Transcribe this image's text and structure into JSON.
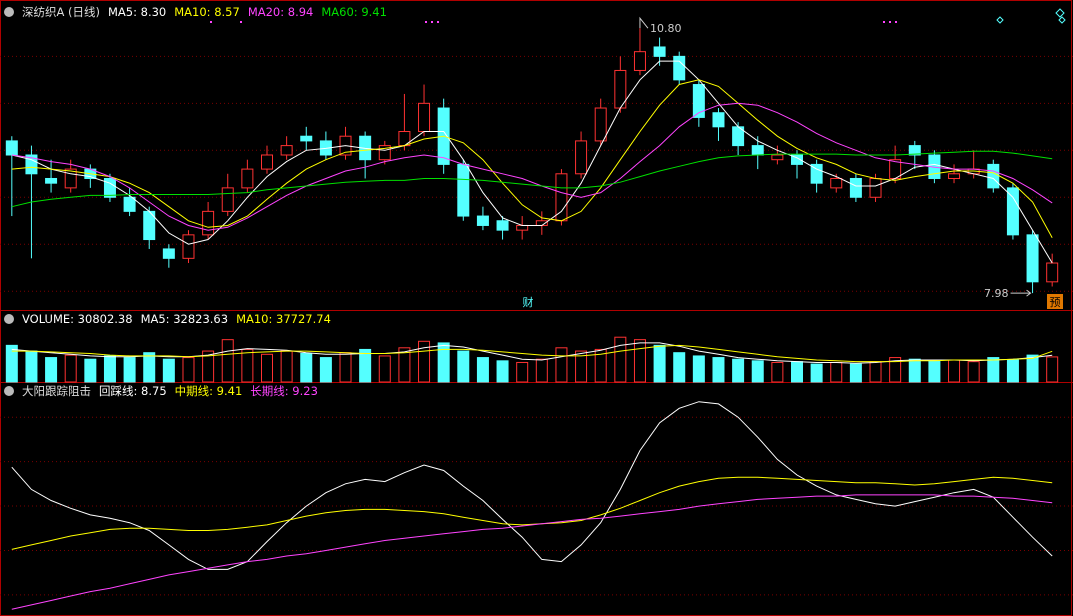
{
  "chart_data": [
    {
      "type": "candlestick",
      "title": "深纺织A (日线)",
      "legend": [
        {
          "text": "MA5: 8.30",
          "color": "#ffffff"
        },
        {
          "text": "MA10: 8.57",
          "color": "#ffff00"
        },
        {
          "text": "MA20: 8.94",
          "color": "#ff44ff"
        },
        {
          "text": "MA60: 9.41",
          "color": "#00e000"
        }
      ],
      "open": [
        9.6,
        9.45,
        9.2,
        9.1,
        9.3,
        9.2,
        9.0,
        8.85,
        8.45,
        8.35,
        8.6,
        8.85,
        9.1,
        9.3,
        9.45,
        9.65,
        9.6,
        9.45,
        9.65,
        9.4,
        9.55,
        9.7,
        9.95,
        9.35,
        8.8,
        8.75,
        8.65,
        8.7,
        8.75,
        9.25,
        9.6,
        9.95,
        10.35,
        10.6,
        10.5,
        10.2,
        9.9,
        9.75,
        9.55,
        9.4,
        9.45,
        9.35,
        9.1,
        9.2,
        9.0,
        9.2,
        9.55,
        9.45,
        9.2,
        9.25,
        9.35,
        9.1,
        8.6,
        8.1
      ],
      "high": [
        9.65,
        9.55,
        9.4,
        9.4,
        9.35,
        9.25,
        9.1,
        8.9,
        8.5,
        8.65,
        8.95,
        9.25,
        9.4,
        9.55,
        9.65,
        9.75,
        9.7,
        9.75,
        9.7,
        9.6,
        10.1,
        10.2,
        10.05,
        9.4,
        8.9,
        8.8,
        8.8,
        8.85,
        9.3,
        9.7,
        10.05,
        10.5,
        10.8,
        10.7,
        10.55,
        10.25,
        9.95,
        9.8,
        9.65,
        9.55,
        9.5,
        9.4,
        9.25,
        9.25,
        9.25,
        9.55,
        9.6,
        9.5,
        9.35,
        9.5,
        9.4,
        9.15,
        8.65,
        8.4
      ],
      "low": [
        8.8,
        8.35,
        9.05,
        9.05,
        9.1,
        8.95,
        8.8,
        8.45,
        8.25,
        8.3,
        8.55,
        8.8,
        9.05,
        9.25,
        9.4,
        9.5,
        9.4,
        9.4,
        9.2,
        9.35,
        9.5,
        9.65,
        9.25,
        8.75,
        8.65,
        8.55,
        8.55,
        8.6,
        8.7,
        9.2,
        9.55,
        9.9,
        10.3,
        10.4,
        10.2,
        9.75,
        9.6,
        9.45,
        9.3,
        9.35,
        9.2,
        9.05,
        9.05,
        8.95,
        8.95,
        9.15,
        9.3,
        9.15,
        9.15,
        9.2,
        9.05,
        8.55,
        7.98,
        8.05
      ],
      "close": [
        9.45,
        9.25,
        9.15,
        9.3,
        9.2,
        9.0,
        8.85,
        8.55,
        8.35,
        8.6,
        8.85,
        9.1,
        9.3,
        9.45,
        9.55,
        9.6,
        9.45,
        9.65,
        9.4,
        9.55,
        9.7,
        10.0,
        9.35,
        8.8,
        8.7,
        8.65,
        8.7,
        8.75,
        9.25,
        9.6,
        9.95,
        10.35,
        10.55,
        10.5,
        10.25,
        9.85,
        9.75,
        9.55,
        9.45,
        9.45,
        9.35,
        9.15,
        9.2,
        9.0,
        9.2,
        9.4,
        9.45,
        9.2,
        9.25,
        9.3,
        9.1,
        8.6,
        8.1,
        8.3
      ],
      "up_color": "#ff3232",
      "down_color": "#54ffff",
      "series": [
        {
          "color": "#ffffff",
          "values": [
            9.45,
            9.4,
            9.3,
            9.25,
            9.22,
            9.15,
            9.02,
            8.85,
            8.62,
            8.5,
            8.55,
            8.75,
            9.0,
            9.22,
            9.38,
            9.5,
            9.52,
            9.55,
            9.52,
            9.5,
            9.55,
            9.7,
            9.7,
            9.4,
            9.05,
            8.78,
            8.7,
            8.7,
            8.85,
            9.15,
            9.55,
            9.95,
            10.25,
            10.45,
            10.45,
            10.25,
            10.0,
            9.75,
            9.6,
            9.5,
            9.42,
            9.3,
            9.22,
            9.12,
            9.12,
            9.2,
            9.32,
            9.35,
            9.3,
            9.25,
            9.2,
            9.0,
            8.65,
            8.3
          ]
        },
        {
          "color": "#ffff00",
          "values": [
            9.3,
            9.32,
            9.3,
            9.28,
            9.25,
            9.22,
            9.15,
            9.05,
            8.9,
            8.75,
            8.68,
            8.7,
            8.8,
            8.98,
            9.15,
            9.3,
            9.4,
            9.48,
            9.5,
            9.52,
            9.55,
            9.62,
            9.65,
            9.58,
            9.4,
            9.15,
            8.92,
            8.78,
            8.75,
            8.85,
            9.1,
            9.4,
            9.7,
            9.98,
            10.2,
            10.25,
            10.18,
            10.0,
            9.82,
            9.65,
            9.52,
            9.42,
            9.35,
            9.25,
            9.2,
            9.18,
            9.22,
            9.25,
            9.28,
            9.28,
            9.26,
            9.15,
            8.95,
            8.57
          ]
        },
        {
          "color": "#ff44ff",
          "values": [
            9.45,
            9.42,
            9.38,
            9.35,
            9.3,
            9.22,
            9.1,
            8.95,
            8.8,
            8.7,
            8.65,
            8.68,
            8.78,
            8.9,
            9.02,
            9.12,
            9.2,
            9.28,
            9.32,
            9.38,
            9.42,
            9.45,
            9.42,
            9.35,
            9.3,
            9.25,
            9.2,
            9.12,
            9.05,
            9.0,
            9.05,
            9.2,
            9.38,
            9.55,
            9.75,
            9.9,
            9.98,
            10.0,
            9.98,
            9.9,
            9.8,
            9.68,
            9.58,
            9.5,
            9.42,
            9.38,
            9.35,
            9.32,
            9.3,
            9.3,
            9.28,
            9.2,
            9.08,
            8.94
          ]
        },
        {
          "color": "#00e000",
          "values": [
            8.9,
            8.95,
            8.98,
            9.0,
            9.02,
            9.02,
            9.03,
            9.03,
            9.03,
            9.03,
            9.03,
            9.04,
            9.05,
            9.08,
            9.1,
            9.12,
            9.14,
            9.16,
            9.17,
            9.18,
            9.18,
            9.2,
            9.2,
            9.19,
            9.18,
            9.16,
            9.14,
            9.12,
            9.1,
            9.1,
            9.12,
            9.16,
            9.22,
            9.28,
            9.33,
            9.38,
            9.42,
            9.44,
            9.45,
            9.46,
            9.46,
            9.46,
            9.46,
            9.45,
            9.45,
            9.45,
            9.46,
            9.47,
            9.48,
            9.49,
            9.49,
            9.47,
            9.44,
            9.41
          ]
        }
      ],
      "high_label": "10.80",
      "low_label": "7.98",
      "markers": [
        "财",
        "预"
      ],
      "ylim": [
        7.8,
        11.1
      ],
      "grid_levels": [
        10.5,
        10.0,
        9.5,
        9.0,
        8.5,
        8.0
      ]
    },
    {
      "type": "bar",
      "legend": [
        {
          "text": "VOLUME: 30802.38",
          "color": "#ffffff"
        },
        {
          "text": "MA5: 32823.63",
          "color": "#ffffff"
        },
        {
          "text": "MA10: 37727.74",
          "color": "#ffff00"
        }
      ],
      "values": [
        45000,
        38000,
        30000,
        33000,
        28000,
        32000,
        30000,
        36000,
        28000,
        30000,
        38000,
        52000,
        40000,
        34000,
        38000,
        35000,
        30000,
        36000,
        40000,
        32000,
        42000,
        50000,
        48000,
        38000,
        30000,
        26000,
        24000,
        28000,
        42000,
        38000,
        40000,
        55000,
        52000,
        45000,
        36000,
        32000,
        30000,
        28000,
        26000,
        24000,
        25000,
        22000,
        24000,
        22000,
        25000,
        30000,
        28000,
        26000,
        27000,
        25000,
        30000,
        27000,
        33000,
        30802.38
      ],
      "series": [
        {
          "color": "#ffffff",
          "values": [
            40000,
            38000,
            36000,
            34000,
            32000,
            31000,
            31000,
            32000,
            31000,
            31000,
            33000,
            38000,
            41000,
            40000,
            39000,
            36000,
            34000,
            34000,
            35000,
            35000,
            37000,
            42000,
            45000,
            43000,
            38000,
            33000,
            28000,
            27000,
            31000,
            35000,
            39000,
            45000,
            48000,
            48000,
            44000,
            38000,
            34000,
            30000,
            28000,
            26000,
            25000,
            24000,
            24000,
            23000,
            24000,
            26000,
            27000,
            27000,
            27000,
            26000,
            27000,
            28000,
            30000,
            32823.63
          ]
        },
        {
          "color": "#ffff00",
          "values": [
            38000,
            38000,
            37000,
            36000,
            35000,
            33000,
            32000,
            32000,
            32000,
            31000,
            32000,
            34000,
            36000,
            37000,
            38000,
            38000,
            37000,
            36000,
            35000,
            35000,
            36000,
            38000,
            40000,
            40000,
            39000,
            37000,
            35000,
            33000,
            32000,
            32000,
            34000,
            38000,
            41000,
            44000,
            45000,
            43000,
            40000,
            37000,
            34000,
            31000,
            29000,
            27000,
            26000,
            25000,
            25000,
            25000,
            26000,
            26000,
            27000,
            27000,
            27000,
            28000,
            29000,
            37727.74
          ]
        }
      ],
      "ylim": [
        0,
        70000
      ]
    },
    {
      "type": "line",
      "title": "大阳跟踪阻击",
      "legend": [
        {
          "text": "回踩线: 8.75",
          "color": "#ffffff"
        },
        {
          "text": "中期线: 9.41",
          "color": "#ffff00"
        },
        {
          "text": "长期线: 9.23",
          "color": "#ff44ff"
        }
      ],
      "series": [
        {
          "color": "#ffffff",
          "values": [
            9.55,
            9.35,
            9.25,
            9.18,
            9.12,
            9.09,
            9.05,
            8.98,
            8.85,
            8.72,
            8.63,
            8.63,
            8.7,
            8.88,
            9.05,
            9.2,
            9.32,
            9.4,
            9.44,
            9.42,
            9.5,
            9.57,
            9.52,
            9.38,
            9.25,
            9.08,
            8.92,
            8.72,
            8.7,
            8.85,
            9.05,
            9.35,
            9.7,
            9.95,
            10.08,
            10.14,
            10.12,
            10.0,
            9.82,
            9.62,
            9.48,
            9.38,
            9.3,
            9.26,
            9.22,
            9.2,
            9.24,
            9.28,
            9.32,
            9.35,
            9.28,
            9.1,
            8.92,
            8.75
          ]
        },
        {
          "color": "#ffff00",
          "values": [
            8.81,
            8.85,
            8.89,
            8.93,
            8.96,
            8.99,
            9.0,
            9.0,
            8.99,
            8.98,
            8.98,
            8.99,
            9.01,
            9.03,
            9.07,
            9.11,
            9.14,
            9.16,
            9.17,
            9.17,
            9.16,
            9.15,
            9.13,
            9.1,
            9.07,
            9.04,
            9.03,
            9.04,
            9.05,
            9.07,
            9.12,
            9.18,
            9.25,
            9.32,
            9.38,
            9.42,
            9.45,
            9.46,
            9.46,
            9.45,
            9.44,
            9.43,
            9.42,
            9.41,
            9.41,
            9.4,
            9.39,
            9.4,
            9.42,
            9.44,
            9.46,
            9.45,
            9.43,
            9.41
          ]
        },
        {
          "color": "#ff44ff",
          "values": [
            8.27,
            8.31,
            8.35,
            8.39,
            8.43,
            8.46,
            8.5,
            8.54,
            8.58,
            8.61,
            8.64,
            8.67,
            8.7,
            8.72,
            8.75,
            8.77,
            8.8,
            8.83,
            8.86,
            8.89,
            8.91,
            8.93,
            8.95,
            8.97,
            8.99,
            9.0,
            9.02,
            9.04,
            9.06,
            9.08,
            9.09,
            9.11,
            9.13,
            9.15,
            9.17,
            9.2,
            9.22,
            9.24,
            9.26,
            9.27,
            9.28,
            9.29,
            9.29,
            9.3,
            9.3,
            9.3,
            9.3,
            9.3,
            9.29,
            9.29,
            9.28,
            9.27,
            9.25,
            9.23
          ]
        }
      ],
      "ylim": [
        8.21,
        10.2
      ],
      "grid_levels": [
        10.0,
        9.6,
        9.2,
        8.8,
        8.4
      ]
    }
  ]
}
